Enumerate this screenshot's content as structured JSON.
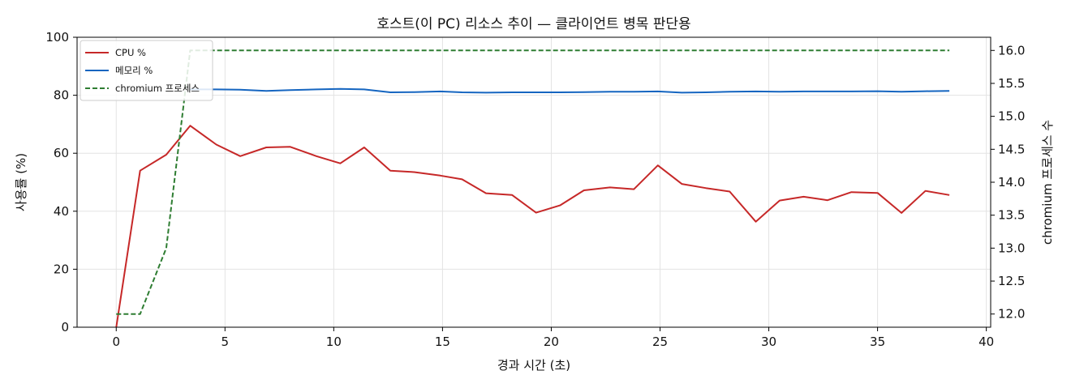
{
  "chart_data": {
    "type": "line",
    "title": "호스트(이 PC) 리소스 추이 — 클라이언트 병목 판단용",
    "xlabel": "경과 시간 (초)",
    "ylabel": "사용률 (%)",
    "y2label": "chromium 프로세스 수",
    "xlim": [
      -1.8,
      40.2
    ],
    "ylim": [
      0,
      100
    ],
    "y2lim": [
      11.8,
      16.2
    ],
    "x_ticks": [
      0,
      5,
      10,
      15,
      20,
      25,
      30,
      35,
      40
    ],
    "y_ticks": [
      0,
      20,
      40,
      60,
      80,
      100
    ],
    "y2_ticks": [
      "12.0",
      "12.5",
      "13.0",
      "13.5",
      "14.0",
      "14.5",
      "15.0",
      "15.5",
      "16.0"
    ],
    "grid": true,
    "legend_position": "upper-left",
    "x": [
      0,
      1.15,
      2.3,
      3.45,
      4.6,
      5.75,
      6.9,
      8.05,
      9.2,
      10.35,
      11.5,
      12.65,
      13.8,
      14.95,
      16.1,
      17.25,
      18.4,
      19.55,
      20.7,
      21.85,
      23.0,
      24.15,
      25.3,
      26.45,
      27.6,
      28.75,
      29.9,
      31.05,
      32.2,
      33.35,
      34.5,
      35.65,
      36.8,
      37.95,
      38.3
    ],
    "series": [
      {
        "name": "CPU %",
        "axis": "left",
        "color": "#c62828",
        "style": "solid",
        "x": [
          0,
          1.1,
          2.3,
          3.4,
          4.6,
          5.7,
          6.9,
          8.0,
          9.2,
          10.3,
          11.4,
          12.6,
          13.7,
          14.9,
          15.9,
          17.0,
          18.2,
          19.3,
          20.4,
          21.5,
          22.7,
          23.8,
          24.9,
          26.0,
          27.1,
          28.2,
          29.4,
          30.5,
          31.6,
          32.7,
          33.8,
          35.0,
          36.1,
          37.2,
          38.3
        ],
        "values": [
          0,
          54,
          59.5,
          69.5,
          63,
          59,
          62,
          62.2,
          59,
          56.5,
          62,
          54,
          53.5,
          52.3,
          51,
          46.2,
          45.6,
          39.5,
          42,
          47.2,
          48.2,
          47.6,
          55.8,
          49.4,
          48,
          46.8,
          36.4,
          43.7,
          45,
          43.8,
          46.6,
          46.3,
          39.4,
          47,
          45.6
        ]
      },
      {
        "name": "메모리 %",
        "axis": "left",
        "color": "#1565c0",
        "style": "solid",
        "x": [
          3.4,
          4.6,
          5.7,
          6.9,
          8.0,
          9.2,
          10.3,
          11.4,
          12.6,
          13.7,
          14.9,
          15.9,
          17.0,
          18.2,
          19.3,
          20.4,
          21.5,
          22.7,
          23.8,
          24.9,
          26.0,
          27.1,
          28.2,
          29.4,
          30.5,
          31.6,
          32.7,
          33.8,
          35.0,
          36.1,
          37.2,
          38.3
        ],
        "values": [
          82,
          82,
          81.9,
          81.5,
          81.8,
          82,
          82.2,
          82,
          81,
          81.1,
          81.3,
          81,
          80.9,
          81,
          81,
          81,
          81.1,
          81.2,
          81.2,
          81.3,
          80.9,
          81,
          81.2,
          81.3,
          81.2,
          81.3,
          81.3,
          81.3,
          81.4,
          81.2,
          81.4,
          81.5
        ]
      },
      {
        "name": "chromium 프로세스",
        "axis": "right",
        "color": "#2e7d32",
        "style": "dashed",
        "x": [
          0,
          1.1,
          2.3,
          3.4,
          4.6,
          38.3
        ],
        "values": [
          12,
          12,
          13,
          16,
          16,
          16
        ]
      }
    ]
  }
}
